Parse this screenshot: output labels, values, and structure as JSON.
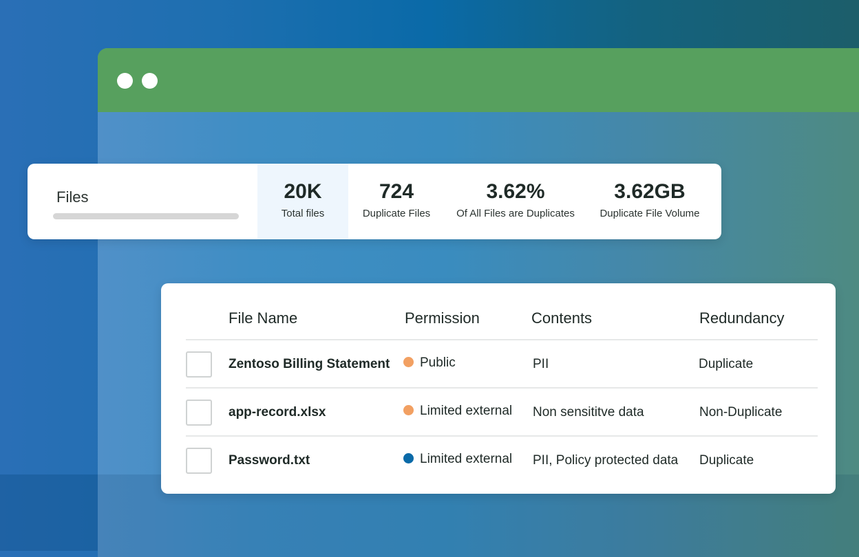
{
  "window": {
    "title_bar_color": "#57a05e"
  },
  "stats": {
    "label": "Files",
    "items": [
      {
        "value": "20K",
        "label": "Total files",
        "highlighted": true
      },
      {
        "value": "724",
        "label": "Duplicate Files"
      },
      {
        "value": "3.62%",
        "label": "Of All Files are Duplicates"
      },
      {
        "value": "3.62GB",
        "label": "Duplicate File Volume"
      }
    ]
  },
  "table": {
    "headers": [
      "File Name",
      "Permission",
      "Contents",
      "Redundancy"
    ],
    "rows": [
      {
        "name": "Zentoso Billing Statement",
        "permission": "Public",
        "permission_color": "#f2a062",
        "contents": "PII",
        "redundancy": "Duplicate",
        "checked": false
      },
      {
        "name": "app-record.xlsx",
        "permission": "Limited external",
        "permission_color": "#f2a062",
        "contents": "Non sensititve data",
        "redundancy": "Non-Duplicate",
        "checked": false
      },
      {
        "name": "Password.txt",
        "permission": "Limited external",
        "permission_color": "#0a6aa8",
        "contents": "PII, Policy protected data",
        "redundancy": "Duplicate",
        "checked": false
      }
    ]
  }
}
